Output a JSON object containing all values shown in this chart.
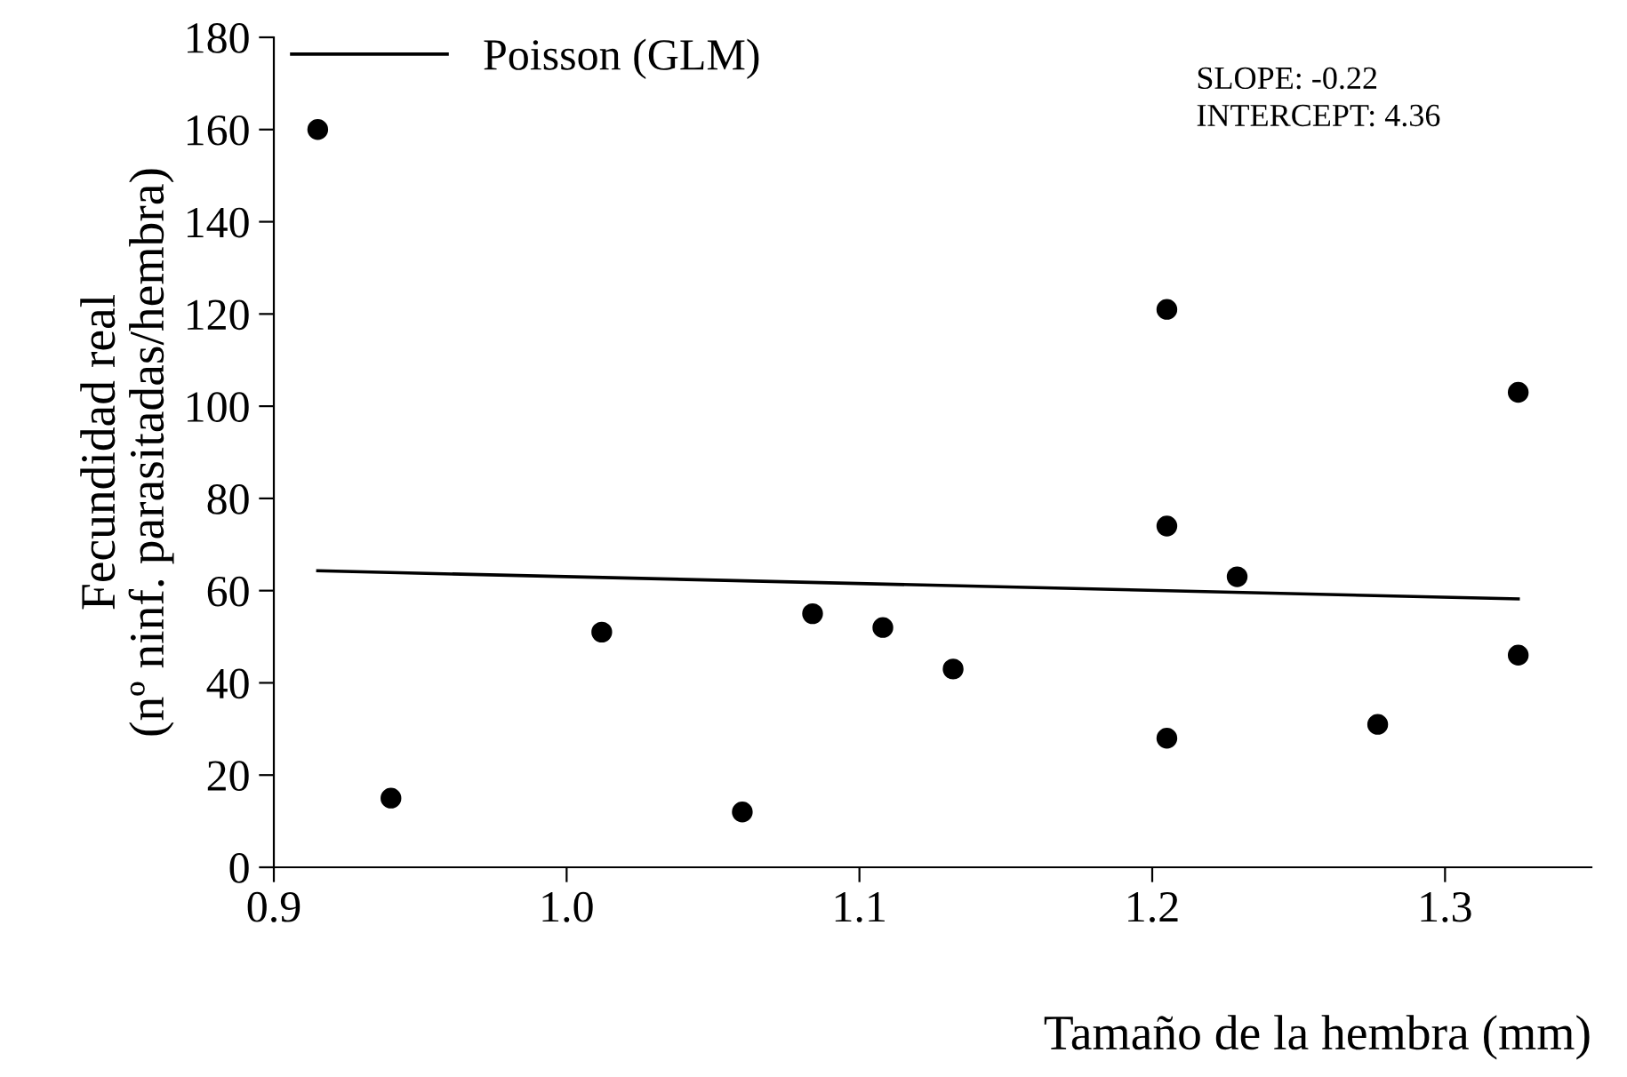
{
  "chart_data": {
    "type": "scatter",
    "xlabel": "Tamaño de la hembra (mm)",
    "ylabel": "Fecundidad real\n(nº ninf. parasitadas/hembra)",
    "annotations": [
      "SLOPE: -0.22",
      "INTERCEPT: 4.36"
    ],
    "series": [
      {
        "color": "#000000",
        "marker": "circle",
        "x": [
          0.915,
          0.94,
          1.012,
          1.06,
          1.084,
          1.108,
          1.132,
          1.205,
          1.205,
          1.205,
          1.229,
          1.277,
          1.325,
          1.325
        ],
        "values": [
          160,
          15,
          51,
          12,
          55,
          52,
          43,
          121,
          74,
          28,
          63,
          31,
          103,
          46
        ]
      },
      {
        "type": "line",
        "name": "Poisson (GLM)",
        "color": "#000000",
        "line_style": "solid",
        "x": [
          0.915,
          1.325
        ],
        "values": [
          64.3,
          58.2
        ]
      }
    ],
    "xlim": [
      0.9,
      1.35
    ],
    "xticks": [
      {
        "value": 0.9,
        "label": "0.9"
      },
      {
        "value": 1.0,
        "label": "1.0"
      },
      {
        "value": 1.1,
        "label": "1.1"
      },
      {
        "value": 1.2,
        "label": "1.2"
      },
      {
        "value": 1.3,
        "label": "1.3"
      }
    ],
    "ylim": [
      0,
      180
    ],
    "yticks": [
      0,
      20,
      40,
      60,
      80,
      100,
      120,
      140,
      160,
      180
    ],
    "grid": false,
    "legend": "top left"
  }
}
